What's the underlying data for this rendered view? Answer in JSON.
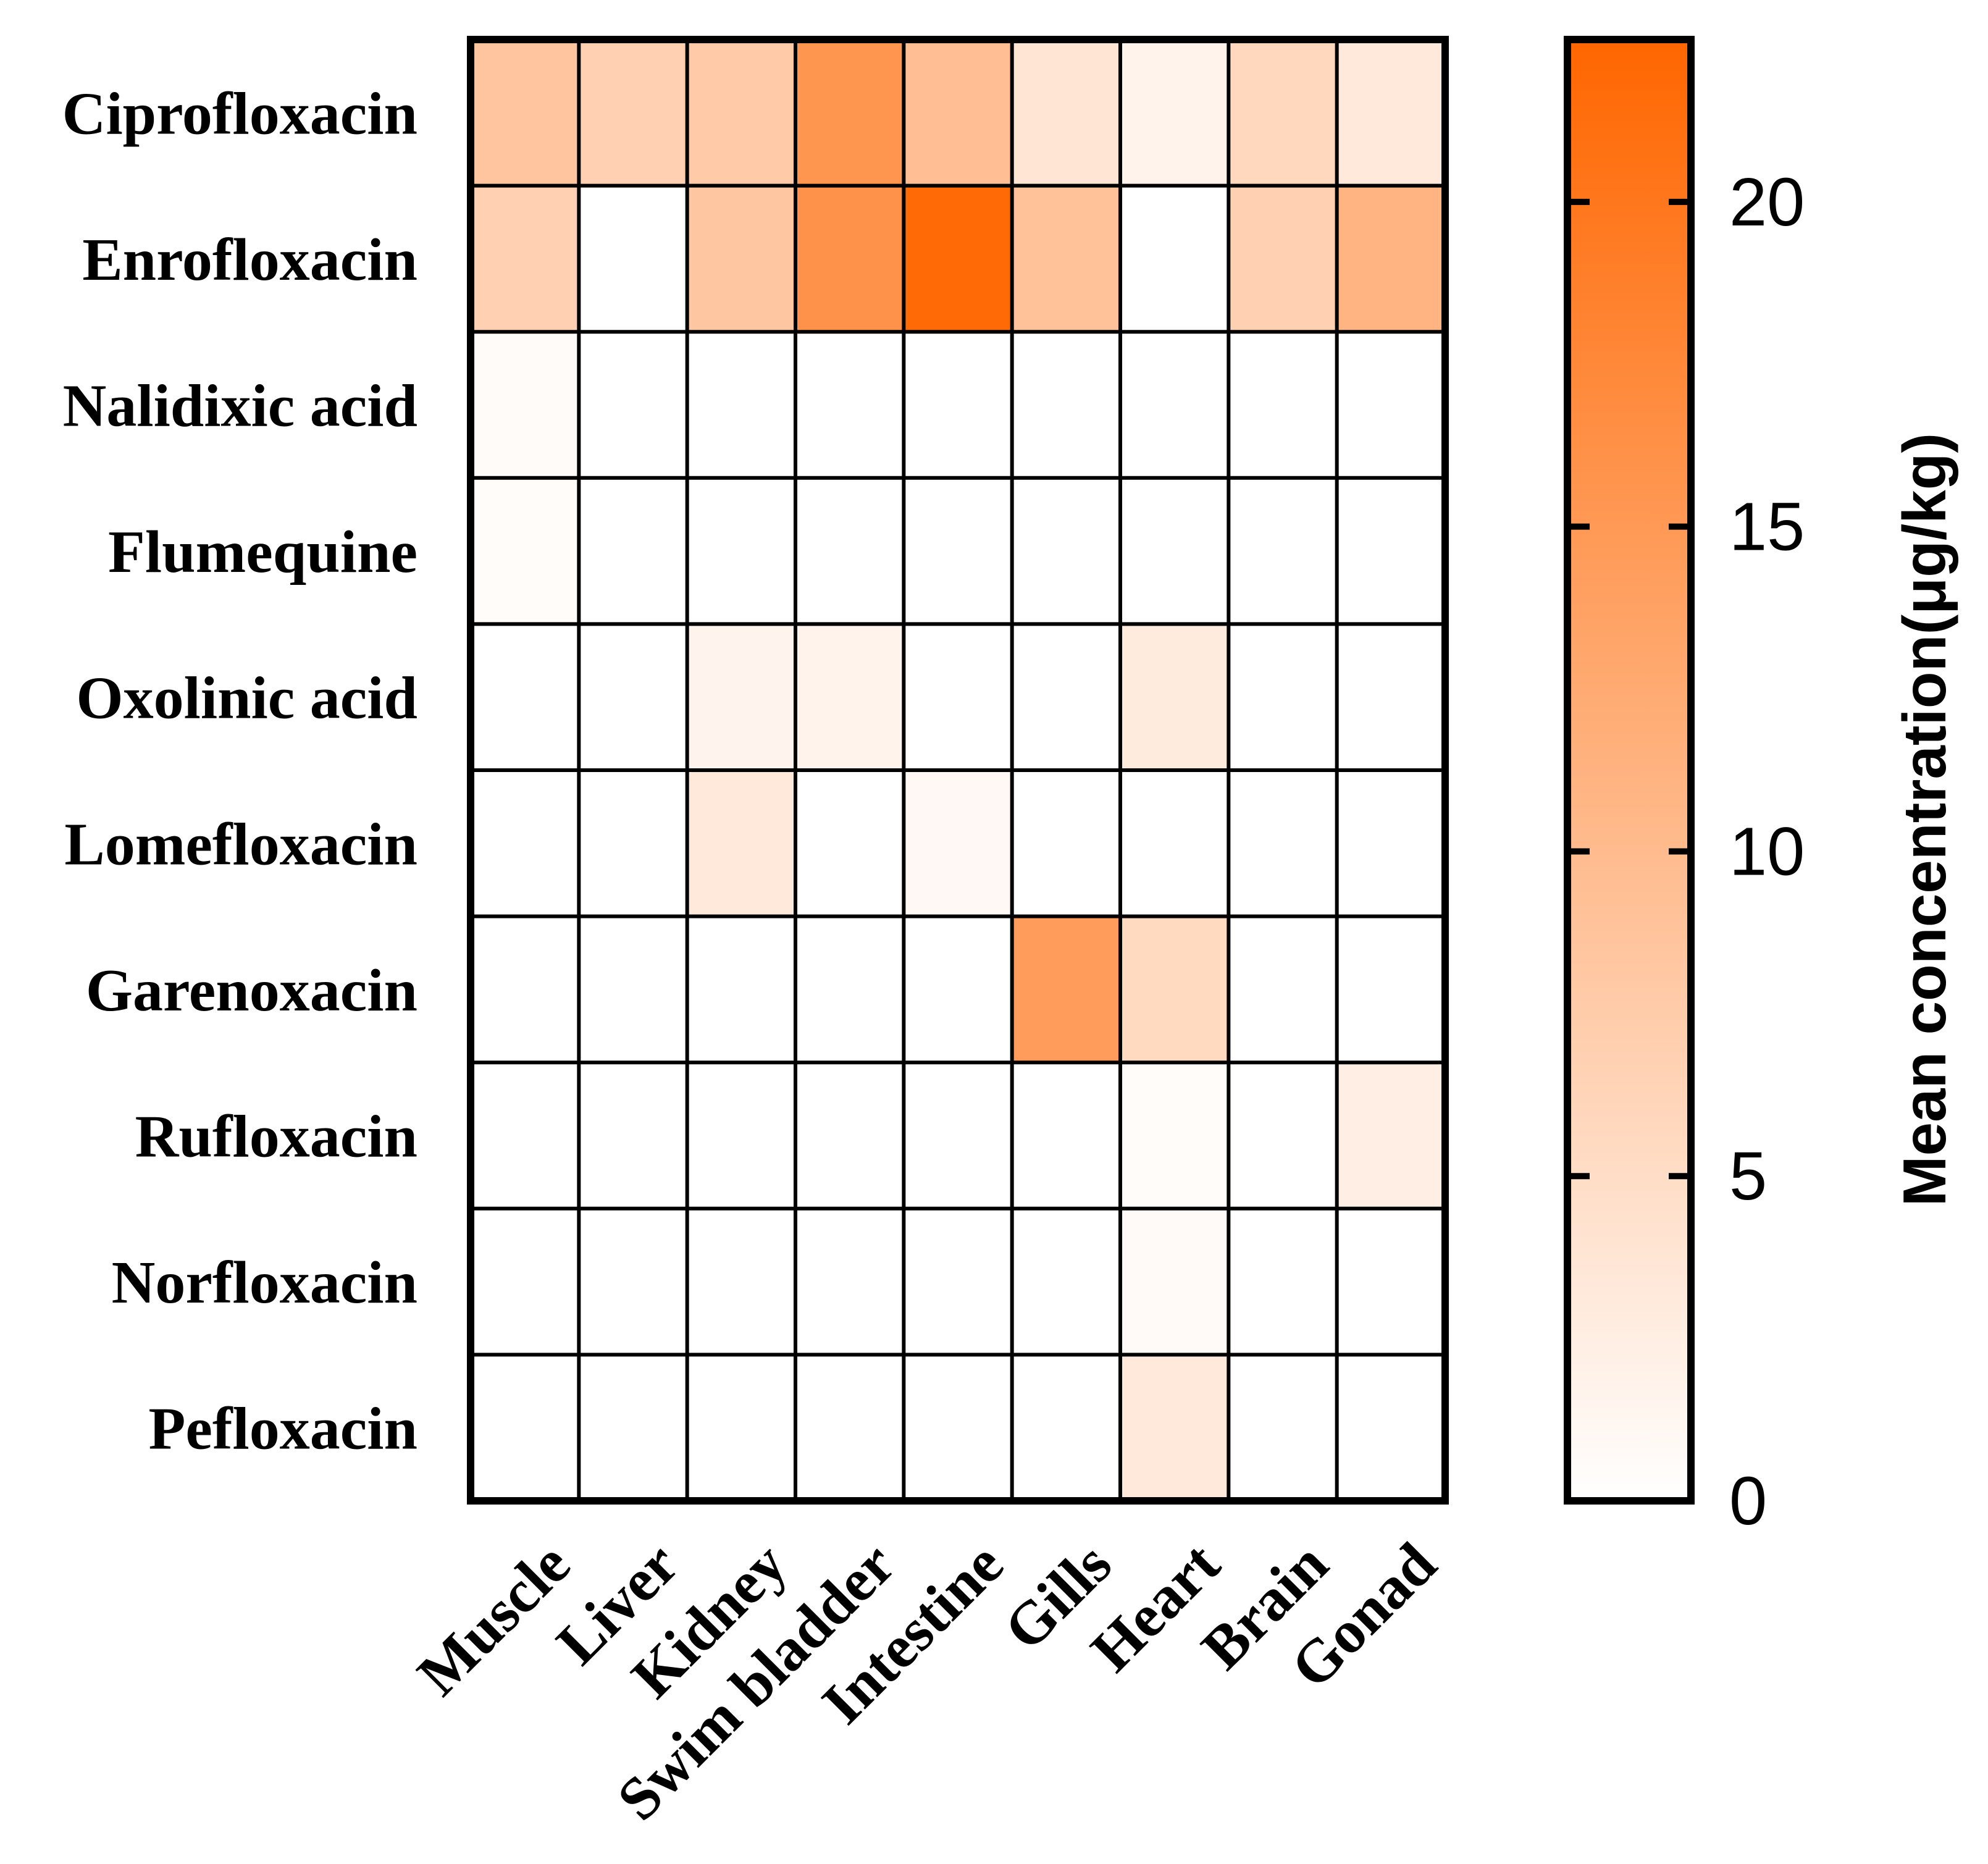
{
  "chart_data": {
    "type": "heatmap",
    "rows": [
      "Ciprofloxacin",
      "Enrofloxacin",
      "Nalidixic acid",
      "Flumequine",
      "Oxolinic acid",
      "Lomefloxacin",
      "Garenoxacin",
      "Rufloxacin",
      "Norfloxacin",
      "Pefloxacin"
    ],
    "columns": [
      "Muscle",
      "Liver",
      "Kidney",
      "Swim bladder",
      "Intestine",
      "Gills",
      "Heart",
      "Brain",
      "Gonad"
    ],
    "values": [
      [
        8.5,
        6.8,
        7.8,
        15.5,
        9.5,
        3.8,
        1.8,
        5.8,
        3.3
      ],
      [
        6.8,
        0,
        8.3,
        16.0,
        22.0,
        9.0,
        0,
        6.8,
        11.0
      ],
      [
        0.6,
        0,
        0,
        0,
        0,
        0,
        0,
        0,
        0
      ],
      [
        0.4,
        0,
        0,
        0,
        0,
        0,
        0,
        0,
        0
      ],
      [
        0,
        0,
        1.6,
        1.8,
        0,
        0,
        3.0,
        0,
        0
      ],
      [
        0,
        0,
        3.3,
        0,
        1.0,
        0,
        0,
        0,
        0
      ],
      [
        0,
        0,
        0,
        0,
        0,
        14.5,
        5.5,
        0,
        0
      ],
      [
        0,
        0,
        0,
        0,
        0,
        0,
        0.5,
        0,
        2.5
      ],
      [
        0,
        0,
        0,
        0,
        0,
        0,
        0.7,
        0,
        0
      ],
      [
        0,
        0,
        0,
        0,
        0,
        0,
        3.3,
        0,
        0
      ]
    ],
    "colorbar": {
      "title": "Mean concentration(μg/kg)",
      "min": 0,
      "max": 22.5,
      "ticks": [
        0,
        5,
        10,
        15,
        20
      ],
      "color_low": "#ffffff",
      "color_high": "#ff6600"
    },
    "xlabel": "",
    "ylabel": ""
  }
}
